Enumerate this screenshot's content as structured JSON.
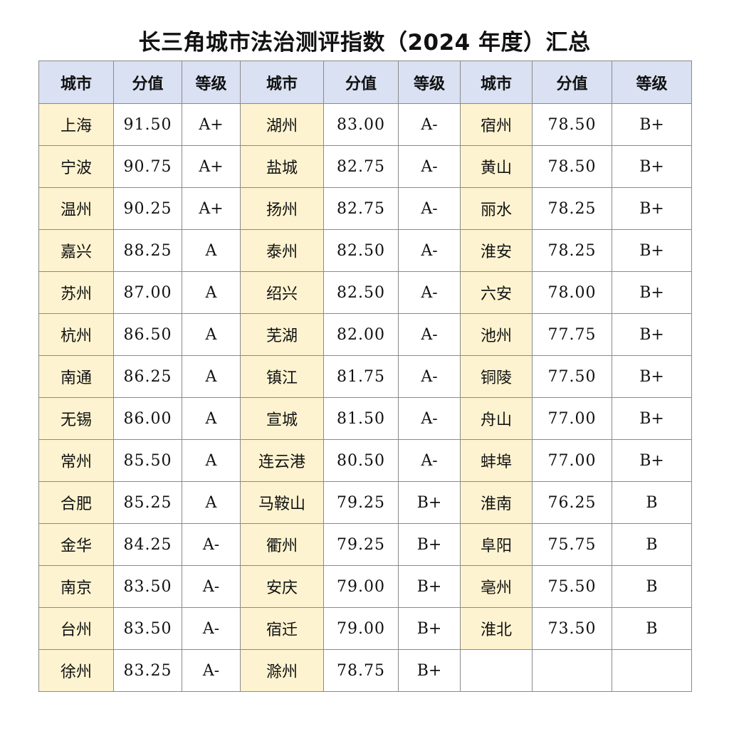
{
  "title": "长三角城市法治测评指数（2024 年度）汇总",
  "headers": [
    "城市",
    "分值",
    "等级",
    "城市",
    "分值",
    "等级",
    "城市",
    "分值",
    "等级"
  ],
  "rows": [
    [
      [
        "上海",
        "91.50",
        "A+"
      ],
      [
        "湖州",
        "83.00",
        "A-"
      ],
      [
        "宿州",
        "78.50",
        "B+"
      ]
    ],
    [
      [
        "宁波",
        "90.75",
        "A+"
      ],
      [
        "盐城",
        "82.75",
        "A-"
      ],
      [
        "黄山",
        "78.50",
        "B+"
      ]
    ],
    [
      [
        "温州",
        "90.25",
        "A+"
      ],
      [
        "扬州",
        "82.75",
        "A-"
      ],
      [
        "丽水",
        "78.25",
        "B+"
      ]
    ],
    [
      [
        "嘉兴",
        "88.25",
        "A"
      ],
      [
        "泰州",
        "82.50",
        "A-"
      ],
      [
        "淮安",
        "78.25",
        "B+"
      ]
    ],
    [
      [
        "苏州",
        "87.00",
        "A"
      ],
      [
        "绍兴",
        "82.50",
        "A-"
      ],
      [
        "六安",
        "78.00",
        "B+"
      ]
    ],
    [
      [
        "杭州",
        "86.50",
        "A"
      ],
      [
        "芜湖",
        "82.00",
        "A-"
      ],
      [
        "池州",
        "77.75",
        "B+"
      ]
    ],
    [
      [
        "南通",
        "86.25",
        "A"
      ],
      [
        "镇江",
        "81.75",
        "A-"
      ],
      [
        "铜陵",
        "77.50",
        "B+"
      ]
    ],
    [
      [
        "无锡",
        "86.00",
        "A"
      ],
      [
        "宣城",
        "81.50",
        "A-"
      ],
      [
        "舟山",
        "77.00",
        "B+"
      ]
    ],
    [
      [
        "常州",
        "85.50",
        "A"
      ],
      [
        "连云港",
        "80.50",
        "A-"
      ],
      [
        "蚌埠",
        "77.00",
        "B+"
      ]
    ],
    [
      [
        "合肥",
        "85.25",
        "A"
      ],
      [
        "马鞍山",
        "79.25",
        "B+"
      ],
      [
        "淮南",
        "76.25",
        "B"
      ]
    ],
    [
      [
        "金华",
        "84.25",
        "A-"
      ],
      [
        "衢州",
        "79.25",
        "B+"
      ],
      [
        "阜阳",
        "75.75",
        "B"
      ]
    ],
    [
      [
        "南京",
        "83.50",
        "A-"
      ],
      [
        "安庆",
        "79.00",
        "B+"
      ],
      [
        "亳州",
        "75.50",
        "B"
      ]
    ],
    [
      [
        "台州",
        "83.50",
        "A-"
      ],
      [
        "宿迁",
        "79.00",
        "B+"
      ],
      [
        "淮北",
        "73.50",
        "B"
      ]
    ],
    [
      [
        "徐州",
        "83.25",
        "A-"
      ],
      [
        "滁州",
        "78.75",
        "B+"
      ],
      null
    ]
  ]
}
